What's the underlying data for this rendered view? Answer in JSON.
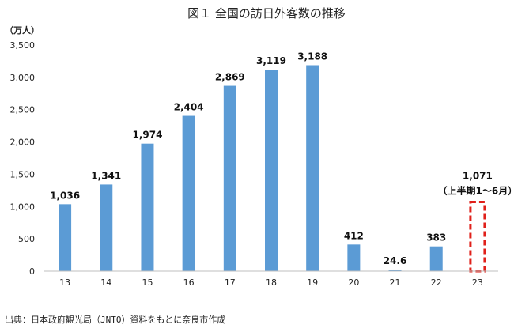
{
  "chart_data": {
    "type": "bar",
    "title": "図１ 全国の訪日外客数の推移",
    "unit_label": "（万人）",
    "categories": [
      "13",
      "14",
      "15",
      "16",
      "17",
      "18",
      "19",
      "20",
      "21",
      "22",
      "23"
    ],
    "values": [
      1036,
      1341,
      1974,
      2404,
      2869,
      3119,
      3188,
      412,
      24.6,
      383,
      null
    ],
    "data_labels": [
      "1,036",
      "1,341",
      "1,974",
      "2,404",
      "2,869",
      "3,119",
      "3,188",
      "412",
      "24.6",
      "383",
      "1,071"
    ],
    "partial_bar": {
      "category": "23",
      "value": 1071,
      "label": "1,071",
      "note": "（上半期1～6月）",
      "style": "dashed-outline",
      "color": "#e0201a"
    },
    "ylim": [
      0,
      3500
    ],
    "yticks": [
      0,
      500,
      1000,
      1500,
      2000,
      2500,
      3000,
      3500
    ],
    "ytick_labels": [
      "0",
      "500",
      "1,000",
      "1,500",
      "2,000",
      "2,500",
      "3,000",
      "3,500"
    ],
    "grid": false,
    "legend": "none",
    "bar_color": "#5b9bd5",
    "source_note": "出典：日本政府観光局（JNTO）資料をもとに奈良市作成"
  }
}
